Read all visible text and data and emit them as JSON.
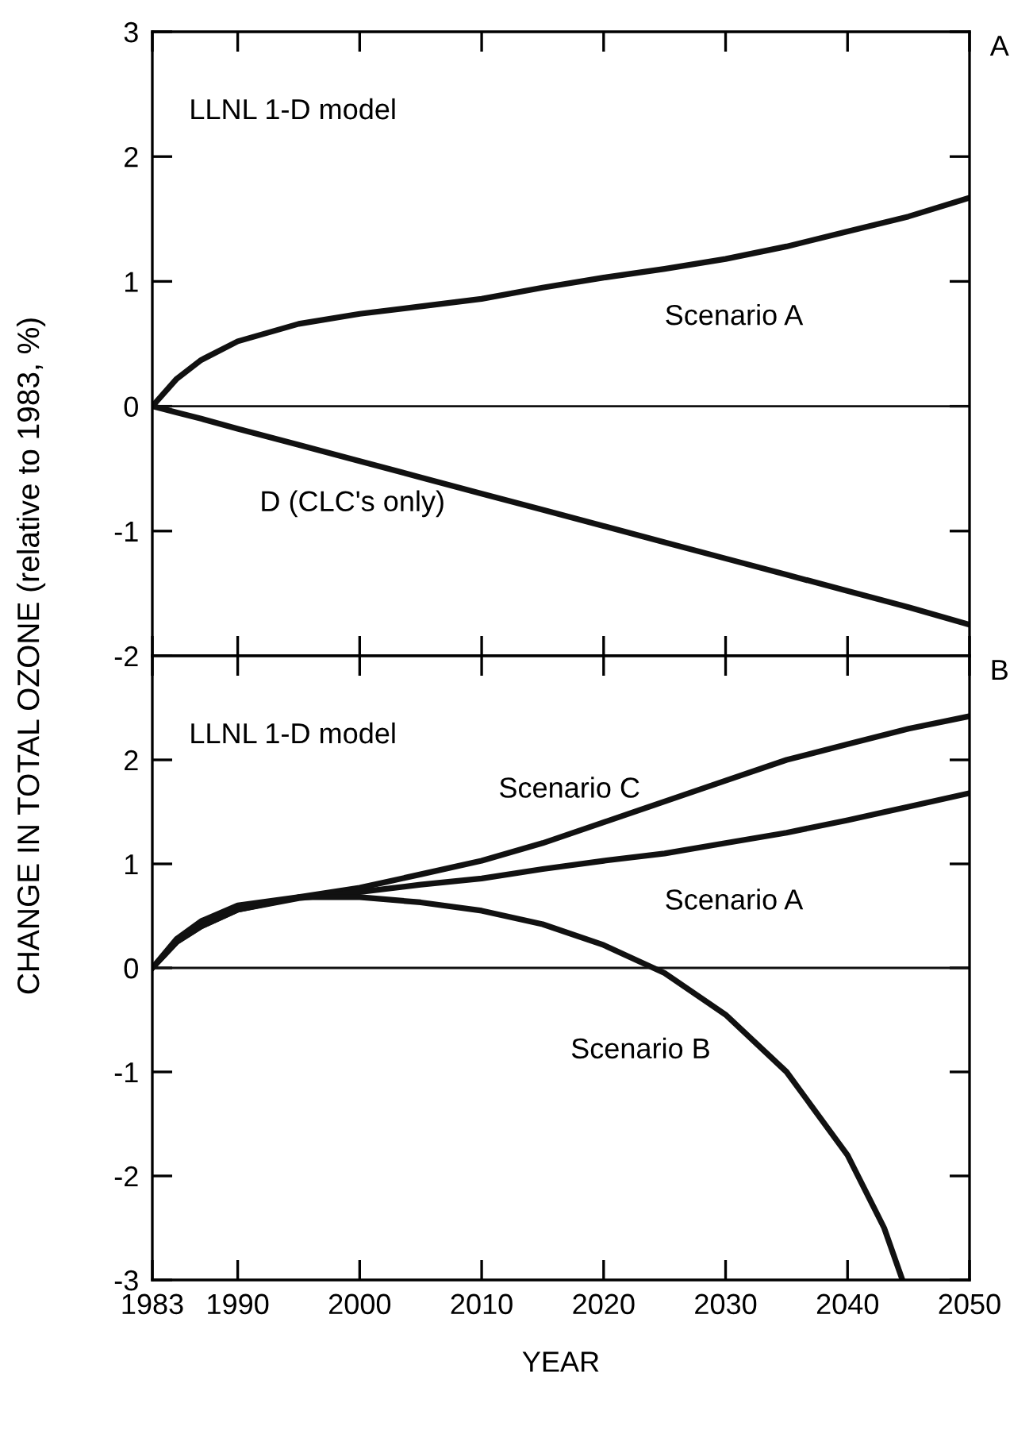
{
  "chart_data": [
    {
      "type": "line",
      "ylabel": "CHANGE IN TOTAL OZONE (relative to 1983, %)",
      "tick_labels": "y",
      "xlim": [
        1983,
        2050
      ],
      "xticks": [
        1983,
        1990,
        2000,
        2010,
        2020,
        2030,
        2040,
        2050
      ],
      "ylim": [
        -2,
        3
      ],
      "yticks": [
        -2,
        -1,
        0,
        1,
        2,
        3
      ],
      "grid": false,
      "legend": false,
      "x": [
        1983,
        1985,
        1987,
        1990,
        1995,
        2000,
        2005,
        2010,
        2015,
        2020,
        2025,
        2030,
        2035,
        2040,
        2045,
        2050
      ],
      "series": [
        {
          "name": "Scenario A",
          "color": "#111111",
          "values": [
            0,
            0.22,
            0.37,
            0.52,
            0.66,
            0.74,
            0.8,
            0.86,
            0.95,
            1.03,
            1.1,
            1.18,
            1.28,
            1.4,
            1.52,
            1.67
          ]
        },
        {
          "name": "D (CLC's only)",
          "color": "#111111",
          "values": [
            0,
            -0.05,
            -0.1,
            -0.18,
            -0.31,
            -0.44,
            -0.57,
            -0.7,
            -0.83,
            -0.96,
            -1.09,
            -1.22,
            -1.35,
            -1.48,
            -1.61,
            -1.75
          ]
        }
      ],
      "ref_lines": [
        {
          "axis": "y",
          "value": 0
        }
      ],
      "annotations": [
        "LLNL 1-D model",
        "A"
      ]
    },
    {
      "type": "line",
      "xlabel": "YEAR",
      "xlim": [
        1983,
        2050
      ],
      "xticks": [
        1983,
        1990,
        2000,
        2010,
        2020,
        2030,
        2040,
        2050
      ],
      "ylim": [
        -3,
        3
      ],
      "yticks": [
        -3,
        -2,
        -1,
        0,
        1,
        2
      ],
      "grid": false,
      "legend": false,
      "x": [
        1983,
        1985,
        1987,
        1990,
        1995,
        2000,
        2005,
        2010,
        2015,
        2020,
        2025,
        2030,
        2035,
        2040,
        2045,
        2050
      ],
      "series": [
        {
          "name": "Scenario C",
          "color": "#111111",
          "values": [
            0,
            0.25,
            0.4,
            0.56,
            0.68,
            0.77,
            0.9,
            1.03,
            1.2,
            1.4,
            1.6,
            1.8,
            2.0,
            2.15,
            2.3,
            2.42
          ]
        },
        {
          "name": "Scenario A",
          "color": "#111111",
          "values": [
            0,
            0.25,
            0.4,
            0.56,
            0.67,
            0.73,
            0.8,
            0.86,
            0.95,
            1.03,
            1.1,
            1.2,
            1.3,
            1.42,
            1.55,
            1.68
          ]
        },
        {
          "name": "Scenario B",
          "color": "#111111",
          "x": [
            1983,
            1985,
            1987,
            1990,
            1995,
            2000,
            2005,
            2010,
            2015,
            2020,
            2025,
            2030,
            2035,
            2040,
            2043,
            2044.5
          ],
          "values": [
            0,
            0.28,
            0.45,
            0.6,
            0.68,
            0.68,
            0.63,
            0.55,
            0.42,
            0.22,
            -0.05,
            -0.45,
            -1.0,
            -1.8,
            -2.5,
            -3.0
          ]
        }
      ],
      "ref_lines": [
        {
          "axis": "y",
          "value": 0
        }
      ],
      "annotations": [
        "LLNL 1-D model",
        "B"
      ]
    }
  ]
}
